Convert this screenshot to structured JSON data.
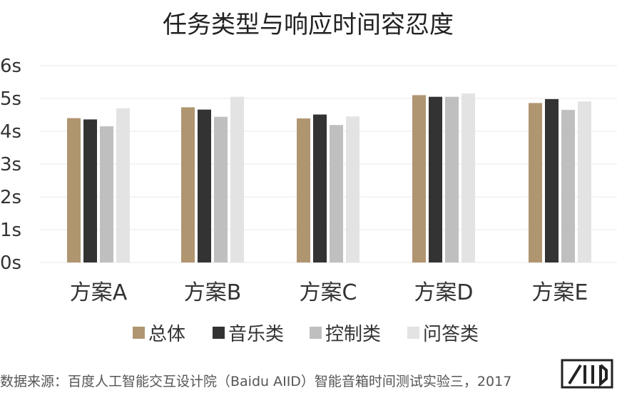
{
  "chart_data": {
    "type": "bar",
    "title": "任务类型与响应时间容忍度",
    "categories": [
      "方案A",
      "方案B",
      "方案C",
      "方案D",
      "方案E"
    ],
    "series": [
      {
        "name": "总体",
        "color": "#b09571",
        "values": [
          4.4,
          4.73,
          4.39,
          5.1,
          4.86
        ]
      },
      {
        "name": "音乐类",
        "color": "#333333",
        "values": [
          4.36,
          4.66,
          4.51,
          5.05,
          4.98
        ]
      },
      {
        "name": "控制类",
        "color": "#bfbfbf",
        "values": [
          4.15,
          4.44,
          4.19,
          5.05,
          4.65
        ]
      },
      {
        "name": "问答类",
        "color": "#e3e3e3",
        "values": [
          4.7,
          5.05,
          4.45,
          5.15,
          4.91
        ]
      }
    ],
    "yticks": [
      "0s",
      "1s",
      "2s",
      "3s",
      "4s",
      "5s",
      "6s"
    ],
    "ylim": [
      0,
      6
    ],
    "grid": true,
    "legend": "bottom"
  },
  "source": "数据来源：百度人工智能交互设计院（Baidu AIID）智能音箱时间测试实验三，2017",
  "logo": "AIID"
}
